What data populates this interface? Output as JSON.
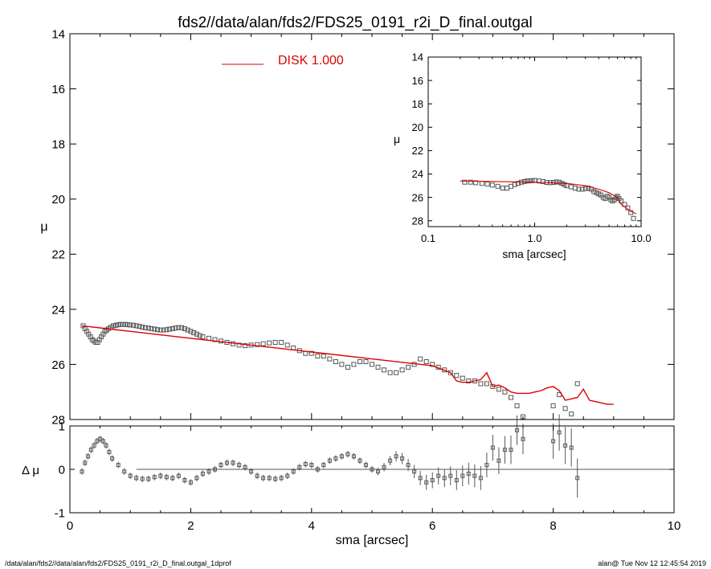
{
  "title": "fds2//data/alan/fds2/FDS25_0191_r2i_D_final.outgal",
  "footer": {
    "left": "/data/alan/fds2//data/alan/fds2/FDS25_0191_r2i_D_final.outgal_1dprof",
    "right": "alan@  Tue Nov 12 12:45:54 2019"
  },
  "colors": {
    "model": "#dd0000",
    "data": "#555555",
    "axis": "#000000"
  },
  "chart_data": [
    {
      "id": "main",
      "type": "scatter",
      "xlabel": "",
      "ylabel": "μ",
      "xlim": [
        0,
        10
      ],
      "ylim": [
        28,
        14
      ],
      "yticks": [
        "14",
        "16",
        "18",
        "20",
        "22",
        "24",
        "26",
        "28"
      ],
      "legend": {
        "label": "DISK  1.000",
        "position": "top-center"
      },
      "series": [
        {
          "type": "scatter",
          "x": [
            0.22,
            0.25,
            0.28,
            0.31,
            0.34,
            0.37,
            0.4,
            0.43,
            0.46,
            0.49,
            0.52,
            0.55,
            0.58,
            0.61,
            0.64,
            0.68,
            0.72,
            0.76,
            0.8,
            0.84,
            0.88,
            0.92,
            0.96,
            1.0,
            1.05,
            1.1,
            1.15,
            1.2,
            1.25,
            1.3,
            1.35,
            1.4,
            1.45,
            1.5,
            1.55,
            1.6,
            1.65,
            1.7,
            1.75,
            1.8,
            1.85,
            1.9,
            1.95,
            2.0,
            2.05,
            2.1,
            2.15,
            2.2,
            2.3,
            2.4,
            2.5,
            2.6,
            2.7,
            2.8,
            2.9,
            3.0,
            3.1,
            3.2,
            3.3,
            3.4,
            3.5,
            3.6,
            3.7,
            3.8,
            3.9,
            4.0,
            4.1,
            4.2,
            4.3,
            4.4,
            4.5,
            4.6,
            4.7,
            4.8,
            4.9,
            5.0,
            5.1,
            5.2,
            5.3,
            5.4,
            5.5,
            5.6,
            5.7,
            5.8,
            5.9,
            6.0,
            6.1,
            6.2,
            6.3,
            6.4,
            6.5,
            6.6,
            6.7,
            6.8,
            6.9,
            7.0,
            7.1,
            7.2,
            7.3,
            7.4,
            7.5,
            8.0,
            8.1,
            8.2,
            8.3,
            8.4
          ],
          "y": [
            24.6,
            24.7,
            24.8,
            24.9,
            25.0,
            25.1,
            25.15,
            25.2,
            25.2,
            25.1,
            25.0,
            24.9,
            24.8,
            24.75,
            24.7,
            24.65,
            24.6,
            24.58,
            24.56,
            24.55,
            24.55,
            24.55,
            24.56,
            24.57,
            24.58,
            24.6,
            24.62,
            24.65,
            24.67,
            24.68,
            24.7,
            24.72,
            24.74,
            24.75,
            24.75,
            24.74,
            24.72,
            24.7,
            24.68,
            24.66,
            24.67,
            24.7,
            24.75,
            24.8,
            24.85,
            24.9,
            24.95,
            25.0,
            25.05,
            25.1,
            25.15,
            25.2,
            25.25,
            25.3,
            25.32,
            25.3,
            25.28,
            25.25,
            25.22,
            25.2,
            25.2,
            25.3,
            25.4,
            25.5,
            25.6,
            25.6,
            25.7,
            25.7,
            25.8,
            25.9,
            26.0,
            26.1,
            26.0,
            25.9,
            25.9,
            26.0,
            26.1,
            26.2,
            26.3,
            26.3,
            26.2,
            26.1,
            26.0,
            25.8,
            25.9,
            26.0,
            26.1,
            26.2,
            26.3,
            26.4,
            26.5,
            26.6,
            26.6,
            26.7,
            26.7,
            26.8,
            26.9,
            27.0,
            27.2,
            27.5,
            27.9,
            27.5,
            27.1,
            27.6,
            27.8,
            26.7
          ]
        },
        {
          "type": "line",
          "x": [
            0.2,
            1,
            2,
            3,
            4,
            5,
            6,
            6.3,
            6.4,
            6.5,
            6.6,
            6.7,
            6.8,
            6.9,
            7.0,
            7.1,
            7.2,
            7.3,
            7.4,
            7.5,
            7.6,
            7.7,
            7.8,
            7.9,
            8.0,
            8.1,
            8.2,
            8.3,
            8.4,
            8.5,
            8.6,
            8.7,
            8.8,
            8.9,
            9.0
          ],
          "y": [
            24.6,
            24.8,
            25.05,
            25.3,
            25.55,
            25.8,
            26.05,
            26.3,
            26.6,
            26.65,
            26.65,
            26.6,
            26.55,
            26.3,
            26.8,
            26.75,
            26.85,
            27.0,
            27.05,
            27.05,
            27.05,
            27.0,
            26.95,
            26.85,
            26.8,
            26.95,
            27.3,
            27.25,
            27.2,
            26.9,
            27.3,
            27.35,
            27.4,
            27.45,
            27.45
          ]
        }
      ]
    },
    {
      "id": "residual",
      "type": "scatter",
      "xlabel": "sma [arcsec]",
      "ylabel": "Δ μ",
      "xlim": [
        0,
        10
      ],
      "ylim": [
        -1,
        1
      ],
      "xticks": [
        "0",
        "2",
        "4",
        "6",
        "8",
        "10"
      ],
      "yticks": [
        "1",
        "0",
        "-1"
      ],
      "series": [
        {
          "type": "scatter",
          "x": [
            0.2,
            0.25,
            0.3,
            0.35,
            0.4,
            0.45,
            0.5,
            0.55,
            0.6,
            0.65,
            0.7,
            0.8,
            0.9,
            1.0,
            1.1,
            1.2,
            1.3,
            1.4,
            1.5,
            1.6,
            1.7,
            1.8,
            1.9,
            2.0,
            2.1,
            2.2,
            2.3,
            2.4,
            2.5,
            2.6,
            2.7,
            2.8,
            2.9,
            3.0,
            3.1,
            3.2,
            3.3,
            3.4,
            3.5,
            3.6,
            3.7,
            3.8,
            3.9,
            4.0,
            4.1,
            4.2,
            4.3,
            4.4,
            4.5,
            4.6,
            4.7,
            4.8,
            4.9,
            5.0,
            5.1,
            5.2,
            5.3,
            5.4,
            5.5,
            5.6,
            5.7,
            5.8,
            5.9,
            6.0,
            6.1,
            6.2,
            6.3,
            6.4,
            6.5,
            6.6,
            6.7,
            6.8,
            6.9,
            7.0,
            7.1,
            7.2,
            7.3,
            7.4,
            7.5,
            8.0,
            8.1,
            8.2,
            8.3,
            8.4
          ],
          "y": [
            -0.05,
            0.15,
            0.3,
            0.45,
            0.55,
            0.65,
            0.7,
            0.65,
            0.55,
            0.4,
            0.25,
            0.1,
            -0.05,
            -0.15,
            -0.2,
            -0.22,
            -0.22,
            -0.18,
            -0.15,
            -0.18,
            -0.2,
            -0.15,
            -0.25,
            -0.3,
            -0.2,
            -0.1,
            -0.05,
            0.0,
            0.1,
            0.15,
            0.15,
            0.1,
            0.05,
            -0.05,
            -0.15,
            -0.2,
            -0.2,
            -0.22,
            -0.2,
            -0.15,
            -0.05,
            0.05,
            0.12,
            0.1,
            0.0,
            0.1,
            0.2,
            0.25,
            0.3,
            0.35,
            0.3,
            0.2,
            0.1,
            0.0,
            -0.05,
            0.05,
            0.2,
            0.3,
            0.25,
            0.1,
            -0.05,
            -0.2,
            -0.3,
            -0.25,
            -0.15,
            -0.2,
            -0.15,
            -0.25,
            -0.15,
            -0.1,
            -0.15,
            -0.2,
            0.1,
            0.5,
            0.2,
            0.45,
            0.45,
            0.9,
            0.7,
            0.65,
            0.85,
            0.55,
            0.5,
            -0.2
          ]
        },
        {
          "type": "line",
          "x": [
            1.1,
            10
          ],
          "y": [
            0,
            0
          ]
        }
      ]
    },
    {
      "id": "inset",
      "type": "scatter",
      "xlabel": "sma [arcsec]",
      "ylabel": "μ",
      "xscale": "log",
      "xlim": [
        0.1,
        10
      ],
      "ylim": [
        28.5,
        14
      ],
      "xticks": [
        "0.1",
        "1.0",
        "10.0"
      ],
      "yticks": [
        "14",
        "16",
        "18",
        "20",
        "22",
        "24",
        "26",
        "28"
      ],
      "series": [
        {
          "type": "scatter",
          "x": [
            0.22,
            0.25,
            0.28,
            0.32,
            0.36,
            0.4,
            0.45,
            0.5,
            0.55,
            0.6,
            0.65,
            0.7,
            0.75,
            0.8,
            0.85,
            0.9,
            0.95,
            1.0,
            1.1,
            1.2,
            1.3,
            1.4,
            1.5,
            1.6,
            1.7,
            1.8,
            1.9,
            2.0,
            2.2,
            2.4,
            2.6,
            2.8,
            3.0,
            3.2,
            3.4,
            3.6,
            3.8,
            4.0,
            4.2,
            4.4,
            4.6,
            4.8,
            5.0,
            5.2,
            5.4,
            5.6,
            5.8,
            6.0,
            6.2,
            6.5,
            7.0,
            7.5,
            8.0,
            8.5
          ],
          "y": [
            24.7,
            24.7,
            24.75,
            24.8,
            24.85,
            24.95,
            25.05,
            25.2,
            25.2,
            25.05,
            24.9,
            24.8,
            24.7,
            24.65,
            24.6,
            24.58,
            24.57,
            24.55,
            24.6,
            24.65,
            24.72,
            24.74,
            24.72,
            24.68,
            24.7,
            24.8,
            24.9,
            25.0,
            25.1,
            25.2,
            25.3,
            25.3,
            25.25,
            25.2,
            25.3,
            25.5,
            25.6,
            25.7,
            25.8,
            26.0,
            26.1,
            25.9,
            26.0,
            26.2,
            26.3,
            26.2,
            26.0,
            25.9,
            26.1,
            26.3,
            26.6,
            26.9,
            27.3,
            27.8
          ]
        },
        {
          "type": "line",
          "x": [
            0.2,
            1,
            2,
            3,
            4,
            5,
            6,
            6.5,
            7.0,
            7.5,
            8.0,
            8.5,
            9.0
          ],
          "y": [
            24.6,
            24.7,
            24.8,
            25.0,
            25.3,
            25.6,
            26.0,
            26.6,
            26.8,
            27.0,
            27.2,
            27.3,
            27.4
          ]
        }
      ]
    }
  ]
}
